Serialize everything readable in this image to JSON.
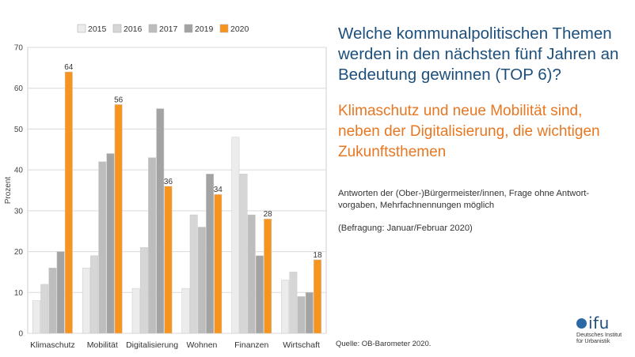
{
  "headline": "Welche kommunalpolitischen Themen werden in den nächsten fünf Jahren an Bedeutung gewinnen (TOP 6)?",
  "subheadline": "Klimaschutz und neue Mobilität sind, neben der Digitalisierung, die wichtigen Zukunftsthemen",
  "note": "Antworten der (Ober-)Bürgermeister/innen, Frage ohne Antwort-vorgaben, Mehrfachnennungen möglich",
  "survey": "(Befragung: Januar/Februar 2020)",
  "source": "Quelle: OB-Barometer 2020.",
  "logo": {
    "word": "ifu",
    "line1": "Deutsches Institut",
    "line2": "für Urbanistik",
    "color": "#2b6aa6"
  },
  "chart_data": {
    "type": "bar",
    "categories": [
      "Klimaschutz",
      "Mobilität",
      "Digitalisierung",
      "Wohnen",
      "Finanzen",
      "Wirtschaft"
    ],
    "series": [
      {
        "name": "2015",
        "color": "#ececec",
        "values": [
          8,
          16,
          11,
          11,
          48,
          13
        ]
      },
      {
        "name": "2016",
        "color": "#d6d6d6",
        "values": [
          12,
          19,
          21,
          29,
          39,
          15
        ]
      },
      {
        "name": "2017",
        "color": "#bdbdbd",
        "values": [
          16,
          42,
          43,
          26,
          29,
          9
        ]
      },
      {
        "name": "2019",
        "color": "#a3a3a3",
        "values": [
          20,
          44,
          55,
          39,
          19,
          10
        ]
      },
      {
        "name": "2020",
        "color": "#f7941d",
        "values": [
          64,
          56,
          36,
          34,
          28,
          18
        ]
      }
    ],
    "data_labels_series": "2020",
    "ylabel": "Prozent",
    "ylim": [
      0,
      70
    ],
    "yticks": [
      0,
      10,
      20,
      30,
      40,
      50,
      60,
      70
    ],
    "grid": true,
    "legend_position": "top"
  }
}
